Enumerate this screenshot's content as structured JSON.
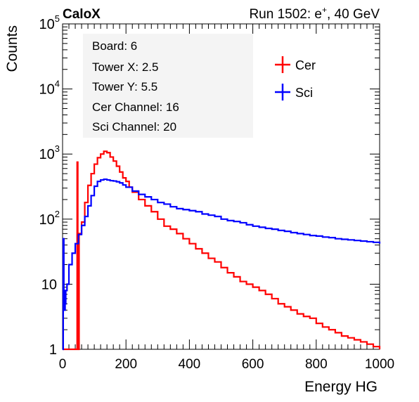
{
  "chart_data": {
    "type": "line",
    "title_left": "CaloX",
    "title_right_prefix": "Run 1502: e",
    "title_right_sup": "+",
    "title_right_suffix": ", 40 GeV",
    "xlabel": "Energy HG",
    "ylabel": "Counts",
    "xlim": [
      0,
      1000
    ],
    "ylim": [
      1,
      100000
    ],
    "y_scale": "log",
    "x_ticks": [
      "0",
      "200",
      "400",
      "600",
      "800",
      "1000"
    ],
    "y_ticks": [
      {
        "base": "1",
        "exp": ""
      },
      {
        "base": "10",
        "exp": ""
      },
      {
        "base": "10",
        "exp": "2"
      },
      {
        "base": "10",
        "exp": "3"
      },
      {
        "base": "10",
        "exp": "4"
      },
      {
        "base": "10",
        "exp": "5"
      }
    ],
    "info_box": [
      "Board: 6",
      "Tower X: 2.5",
      "Tower Y: 5.5",
      "Cer Channel: 16",
      "Sci Channel: 20"
    ],
    "legend": "top-right",
    "series": [
      {
        "name": "Cer",
        "color": "#ff0000",
        "x": [
          0,
          40,
          44,
          46,
          48,
          52,
          60,
          70,
          80,
          90,
          100,
          110,
          120,
          130,
          140,
          150,
          160,
          170,
          180,
          190,
          200,
          210,
          220,
          240,
          260,
          280,
          300,
          320,
          340,
          360,
          380,
          400,
          420,
          440,
          460,
          480,
          500,
          520,
          540,
          560,
          580,
          600,
          620,
          640,
          660,
          680,
          700,
          720,
          740,
          760,
          780,
          800,
          820,
          840,
          860,
          880,
          900,
          920,
          940,
          960,
          980,
          1000
        ],
        "y": [
          1,
          1,
          1,
          750,
          1,
          60,
          90,
          180,
          330,
          500,
          700,
          880,
          1000,
          1100,
          1050,
          900,
          780,
          650,
          530,
          430,
          380,
          310,
          260,
          200,
          160,
          130,
          100,
          78,
          70,
          60,
          50,
          42,
          35,
          30,
          25,
          22,
          18,
          15,
          13,
          11,
          10,
          9,
          8,
          7,
          6,
          5,
          4.5,
          4,
          3.5,
          3.2,
          3,
          2.5,
          2.2,
          2,
          1.8,
          1.6,
          1.5,
          1.4,
          1.3,
          1.2,
          1.1,
          1
        ]
      },
      {
        "name": "Sci",
        "color": "#0000ff",
        "x": [
          0,
          2,
          4,
          6,
          8,
          10,
          14,
          20,
          30,
          40,
          50,
          60,
          70,
          80,
          90,
          100,
          110,
          120,
          130,
          140,
          150,
          160,
          170,
          180,
          190,
          200,
          220,
          240,
          260,
          280,
          300,
          320,
          340,
          360,
          380,
          400,
          420,
          440,
          460,
          480,
          500,
          520,
          540,
          560,
          580,
          600,
          620,
          640,
          660,
          680,
          700,
          720,
          740,
          760,
          780,
          800,
          820,
          840,
          860,
          880,
          900,
          920,
          940,
          960,
          980,
          1000
        ],
        "y": [
          1,
          50,
          8,
          4,
          5,
          8,
          10,
          20,
          30,
          42,
          58,
          80,
          110,
          160,
          230,
          320,
          380,
          400,
          410,
          400,
          390,
          385,
          375,
          360,
          335,
          310,
          270,
          240,
          220,
          200,
          180,
          170,
          155,
          145,
          140,
          135,
          130,
          120,
          115,
          110,
          100,
          95,
          92,
          88,
          82,
          78,
          75,
          72,
          70,
          67,
          65,
          62,
          60,
          58,
          56,
          55,
          53,
          52,
          50,
          49,
          48,
          47,
          46,
          45,
          44,
          42
        ]
      }
    ]
  }
}
